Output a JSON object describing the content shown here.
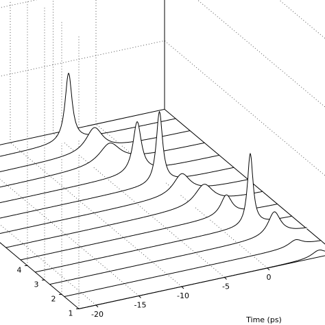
{
  "chart_data": {
    "type": "waterfall",
    "xlabel": "Time (ps)",
    "xlim": [
      -22,
      8
    ],
    "xticks": [
      -20,
      -15,
      -10,
      -5,
      0
    ],
    "ylim": [
      1,
      11
    ],
    "yticks": [
      1,
      2,
      3,
      4
    ],
    "zlim": [
      0,
      4
    ],
    "grid": true,
    "color": "#000000",
    "series": [
      {
        "depth": 10.35,
        "center": -4.5,
        "height": 1.0,
        "width": 0.5
      },
      {
        "depth": 9.5,
        "center": -3.2,
        "height": 0.35,
        "width": 1.2
      },
      {
        "depth": 8.65,
        "center": -3.1,
        "height": 0.3,
        "width": 1.5
      },
      {
        "depth": 7.8,
        "center": -1.6,
        "height": 0.75,
        "width": 0.6
      },
      {
        "depth": 6.95,
        "center": -0.7,
        "height": 1.05,
        "width": 0.45
      },
      {
        "depth": 6.1,
        "center": 0.2,
        "height": 0.3,
        "width": 1.2
      },
      {
        "depth": 5.25,
        "center": 1.1,
        "height": 0.3,
        "width": 1.3
      },
      {
        "depth": 4.4,
        "center": 2.0,
        "height": 0.3,
        "width": 0.8
      },
      {
        "depth": 3.55,
        "center": 3.1,
        "height": 1.05,
        "width": 0.4
      },
      {
        "depth": 2.7,
        "center": 4.2,
        "height": 0.35,
        "width": 0.9
      },
      {
        "depth": 1.85,
        "center": 5.0,
        "height": 0.1,
        "width": 1.0
      },
      {
        "depth": 1.0,
        "center": 6.0,
        "height": 0.1,
        "width": 1.0
      }
    ]
  }
}
